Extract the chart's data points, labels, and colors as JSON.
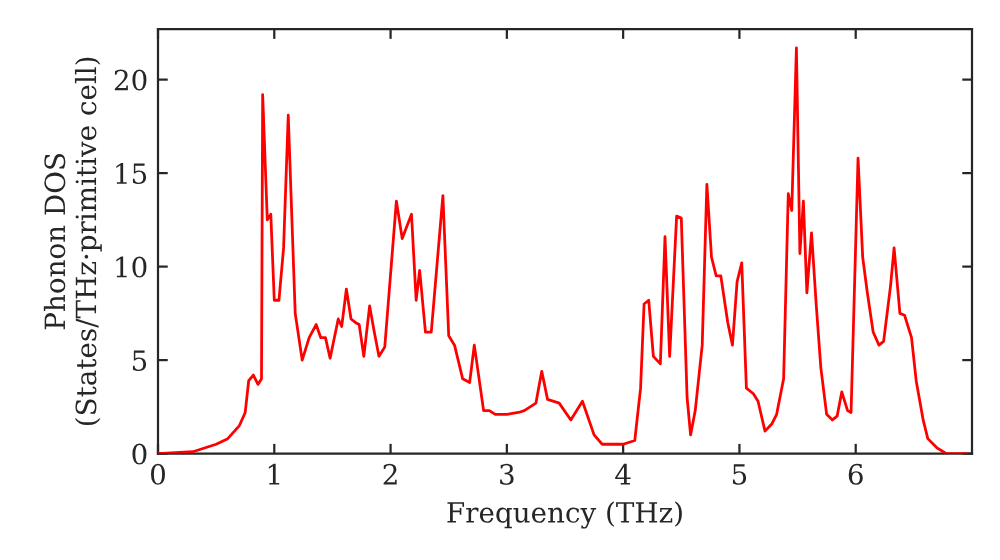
{
  "chart_data": {
    "type": "line",
    "xlabel": "Frequency (THz)",
    "ylabel": "Phonon DOS\n(States/THz·primitive cell)",
    "x": [
      0,
      0.3,
      0.5,
      0.6,
      0.7,
      0.75,
      0.78,
      0.82,
      0.86,
      0.89,
      0.9,
      0.94,
      0.97,
      1.0,
      1.04,
      1.08,
      1.12,
      1.18,
      1.24,
      1.3,
      1.36,
      1.4,
      1.44,
      1.48,
      1.55,
      1.58,
      1.62,
      1.66,
      1.7,
      1.73,
      1.77,
      1.82,
      1.86,
      1.9,
      1.95,
      2.05,
      2.1,
      2.18,
      2.22,
      2.25,
      2.3,
      2.35,
      2.45,
      2.5,
      2.55,
      2.62,
      2.68,
      2.72,
      2.8,
      2.85,
      2.9,
      3.0,
      3.1,
      3.15,
      3.25,
      3.3,
      3.35,
      3.45,
      3.55,
      3.65,
      3.75,
      3.82,
      4.0,
      4.1,
      4.15,
      4.18,
      4.22,
      4.26,
      4.32,
      4.36,
      4.4,
      4.46,
      4.5,
      4.55,
      4.58,
      4.62,
      4.68,
      4.72,
      4.76,
      4.8,
      4.84,
      4.9,
      4.94,
      4.98,
      5.02,
      5.06,
      5.12,
      5.16,
      5.22,
      5.28,
      5.32,
      5.38,
      5.42,
      5.45,
      5.49,
      5.52,
      5.55,
      5.58,
      5.62,
      5.66,
      5.7,
      5.75,
      5.8,
      5.84,
      5.88,
      5.93,
      5.96,
      6.02,
      6.06,
      6.1,
      6.15,
      6.2,
      6.24,
      6.3,
      6.33,
      6.38,
      6.42,
      6.48,
      6.52,
      6.58,
      6.62,
      6.7,
      6.78,
      6.95
    ],
    "series": [
      {
        "color": "#ff0000",
        "values": [
          0,
          0.1,
          0.5,
          0.8,
          1.5,
          2.2,
          3.9,
          4.2,
          3.7,
          4.0,
          19.2,
          12.5,
          12.8,
          8.2,
          8.2,
          11.0,
          18.1,
          7.5,
          5.0,
          6.2,
          6.9,
          6.2,
          6.2,
          5.1,
          7.2,
          6.8,
          8.8,
          7.2,
          7.0,
          6.9,
          5.2,
          7.9,
          6.5,
          5.2,
          5.7,
          13.5,
          11.5,
          12.8,
          8.2,
          9.8,
          6.5,
          6.5,
          13.8,
          6.3,
          5.8,
          4.0,
          3.8,
          5.8,
          2.3,
          2.3,
          2.1,
          2.1,
          2.2,
          2.3,
          2.7,
          4.4,
          2.9,
          2.7,
          1.8,
          2.8,
          1.0,
          0.5,
          0.5,
          0.7,
          3.5,
          8.0,
          8.2,
          5.2,
          4.8,
          11.6,
          5.2,
          12.7,
          12.6,
          3.0,
          1.0,
          2.3,
          5.8,
          14.4,
          10.5,
          9.5,
          9.5,
          7.0,
          5.8,
          9.2,
          10.2,
          3.5,
          3.2,
          2.8,
          1.2,
          1.6,
          2.1,
          4.0,
          13.9,
          13.0,
          21.7,
          10.7,
          13.5,
          8.6,
          11.8,
          8.0,
          4.6,
          2.1,
          1.8,
          2.0,
          3.3,
          2.3,
          2.2,
          15.8,
          10.5,
          8.6,
          6.5,
          5.8,
          6.0,
          9.0,
          11.0,
          7.5,
          7.4,
          6.2,
          3.9,
          1.8,
          0.8,
          0.3,
          0.0,
          0.0
        ]
      }
    ],
    "xlim": [
      0,
      7.0
    ],
    "ylim": [
      0,
      22.7
    ],
    "xticks": [
      0,
      1,
      2,
      3,
      4,
      5,
      6
    ],
    "yticks": [
      0,
      5,
      10,
      15,
      20
    ],
    "grid": false,
    "legend": false
  }
}
